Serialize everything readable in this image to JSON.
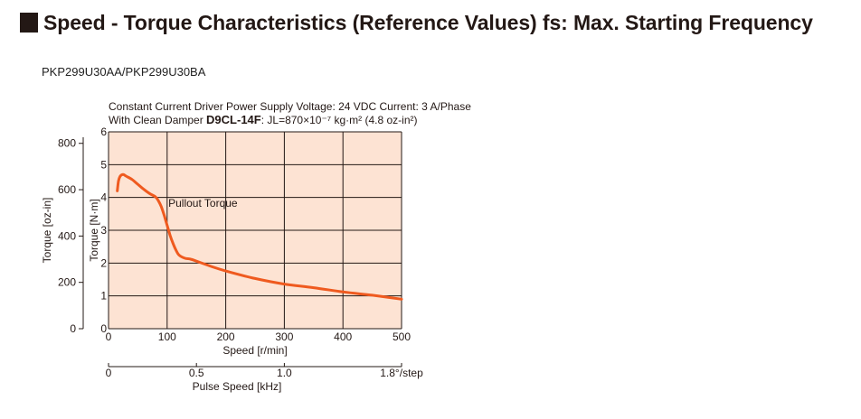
{
  "header": {
    "title": "Speed - Torque Characteristics (Reference Values) fs: Max. Starting Frequency"
  },
  "model": "PKP299U30AA/PKP299U30BA",
  "chart_data": {
    "type": "line",
    "conditions_line1": "Constant Current Driver  Power Supply Voltage: 24 VDC  Current: 3 A/Phase",
    "conditions_line2": {
      "prefix": "With Clean Damper ",
      "damper_model": "D9CL-14F",
      "suffix": ": JL=870×10⁻⁷ kg·m² (4.8 oz-in²)"
    },
    "xlabel": "Speed [r/min]",
    "xlim": [
      0,
      500
    ],
    "xticks": [
      0,
      100,
      200,
      300,
      400,
      500
    ],
    "ylabel_nm": "Torque [N·m]",
    "ylim_nm": [
      0,
      6
    ],
    "yticks_nm": [
      0,
      1,
      2,
      3,
      4,
      5,
      6
    ],
    "ylabel_ozin": "Torque [oz-in]",
    "yticks_ozin": [
      0,
      200,
      400,
      600,
      800
    ],
    "pulse_label": "Pulse Speed [kHz]",
    "pulse_ticks": [
      "0",
      "0.5",
      "1.0"
    ],
    "pulse_step": "1.8°/step",
    "grid": true,
    "background_color": "#fde3d3",
    "line_color": "#ef5a1f",
    "series": [
      {
        "name": "Pullout Torque",
        "x": [
          15,
          17,
          20,
          25,
          30,
          40,
          50,
          60,
          70,
          80,
          85,
          90,
          95,
          100,
          105,
          110,
          115,
          120,
          130,
          140,
          150,
          175,
          200,
          250,
          300,
          350,
          400,
          450,
          500
        ],
        "y": [
          4.2,
          4.5,
          4.65,
          4.7,
          4.65,
          4.55,
          4.4,
          4.25,
          4.12,
          4.02,
          3.9,
          3.72,
          3.45,
          3.15,
          2.85,
          2.6,
          2.4,
          2.25,
          2.15,
          2.12,
          2.06,
          1.9,
          1.76,
          1.53,
          1.36,
          1.25,
          1.12,
          1.02,
          0.9
        ]
      }
    ]
  }
}
